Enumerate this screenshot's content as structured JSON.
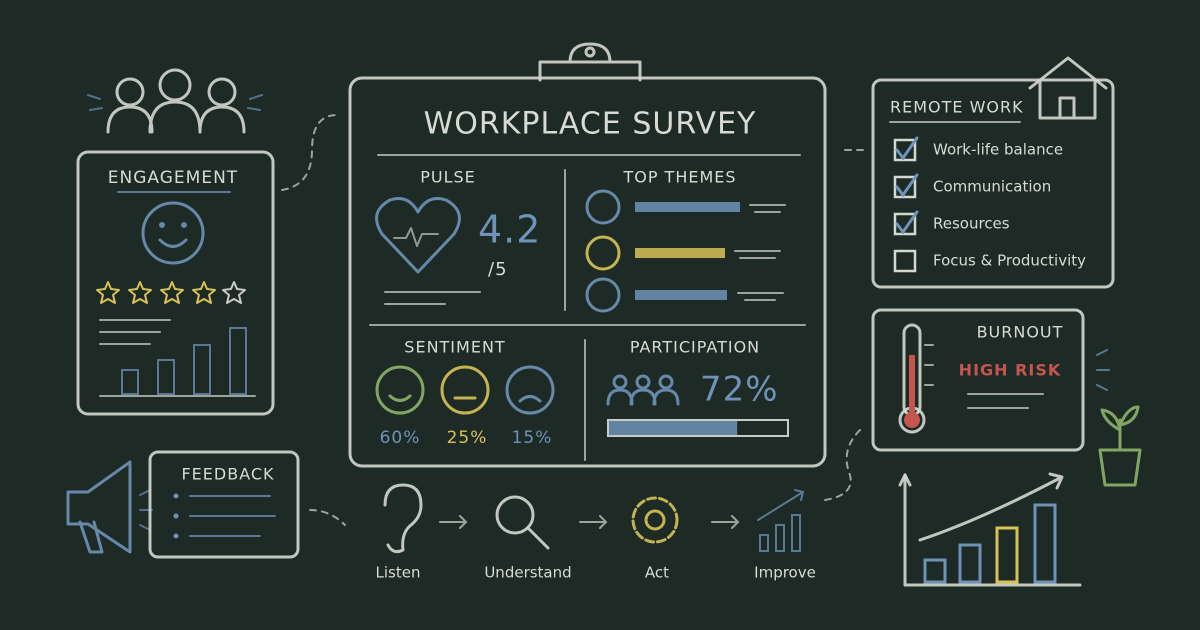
{
  "engagement": {
    "title": "ENGAGEMENT"
  },
  "survey": {
    "title": "WORKPLACE SURVEY",
    "pulse": {
      "title": "PULSE",
      "score": "4.2",
      "scale": "/5"
    },
    "top_themes": {
      "title": "TOP THEMES"
    },
    "sentiment": {
      "title": "SENTIMENT",
      "items": [
        {
          "value": 60,
          "label": "60%"
        },
        {
          "value": 25,
          "label": "25%"
        },
        {
          "value": 15,
          "label": "15%"
        }
      ]
    },
    "participation": {
      "title": "PARTICIPATION",
      "value": 72,
      "label": "72%"
    }
  },
  "remote_work": {
    "title": "REMOTE WORK",
    "items": [
      {
        "label": "Work-life balance",
        "checked": true
      },
      {
        "label": "Communication",
        "checked": true
      },
      {
        "label": "Resources",
        "checked": true
      },
      {
        "label": "Focus & Productivity",
        "checked": false
      }
    ]
  },
  "burnout": {
    "title": "BURNOUT",
    "status": "HIGH RISK"
  },
  "feedback": {
    "title": "FEEDBACK"
  },
  "process": {
    "steps": [
      "Listen",
      "Understand",
      "Act",
      "Improve"
    ]
  }
}
